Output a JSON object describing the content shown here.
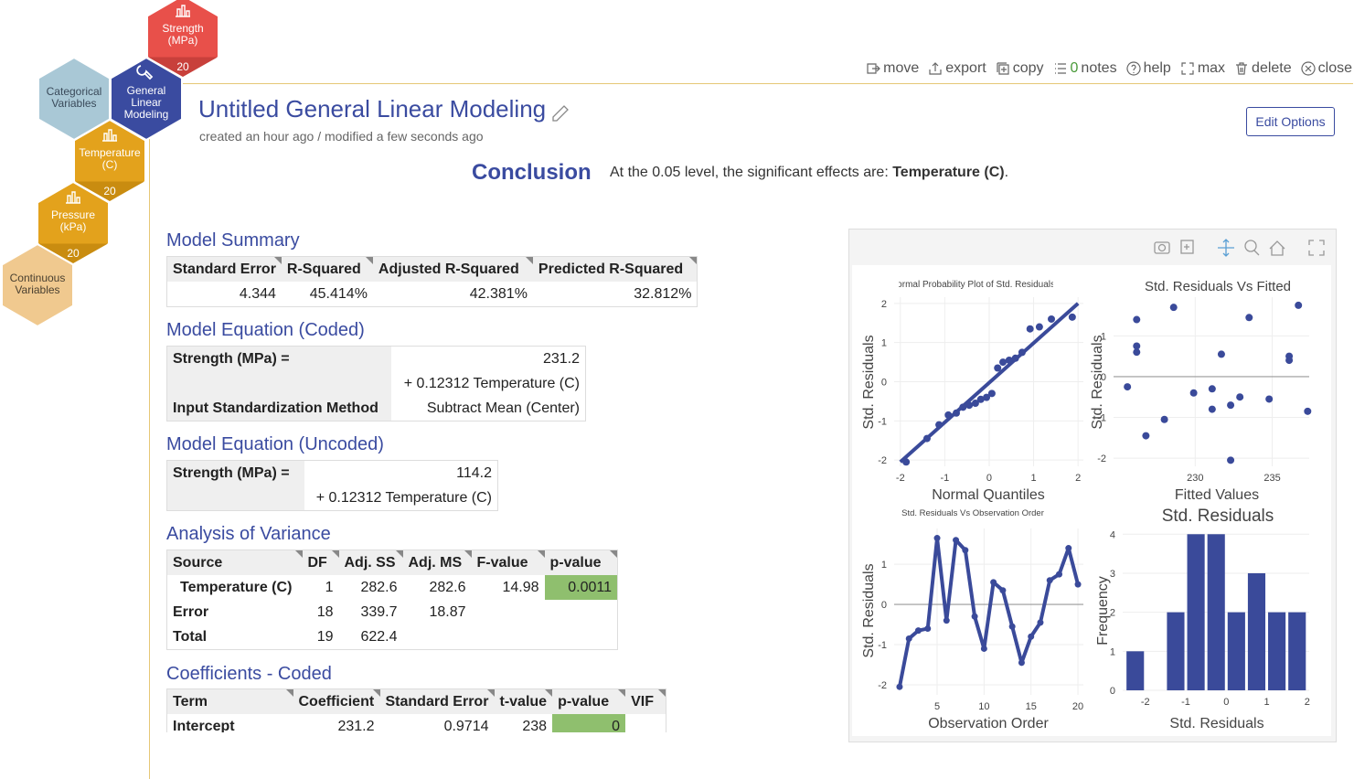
{
  "nodes": [
    {
      "label": "Strength (MPa)",
      "badge": 20,
      "color": "#e8504a",
      "badge_color": "#c8403b",
      "text_color": "#ffffff",
      "icon": "chart"
    },
    {
      "label": "Categorical Variables",
      "color": "#a9c8d6",
      "text_color": "#3a4a5a"
    },
    {
      "label": "General Linear Modeling",
      "color": "#3a4ba0",
      "text_color": "#ffffff",
      "icon": "wrench"
    },
    {
      "label": "Temperature (C)",
      "badge": 20,
      "color": "#e3a21c",
      "badge_color": "#c98c10",
      "text_color": "#ffffff",
      "icon": "chart"
    },
    {
      "label": "Pressure (kPa)",
      "badge": 20,
      "color": "#e3a21c",
      "badge_color": "#c98c10",
      "text_color": "#ffffff",
      "icon": "chart"
    },
    {
      "label": "Continuous Variables",
      "color": "#f0c98f",
      "text_color": "#4a4030"
    }
  ],
  "toolbar": {
    "items": [
      "move",
      "export",
      "copy",
      "notes",
      "help",
      "max",
      "delete",
      "close"
    ],
    "notes_count": 0
  },
  "header": {
    "title": "Untitled General Linear Modeling",
    "subtitle": "created an hour ago / modified a few seconds ago",
    "edit_button": "Edit Options"
  },
  "conclusion": {
    "heading": "Conclusion",
    "text": "At the 0.05 level, the significant effects are: ",
    "effect": "Temperature (C)",
    "end": "."
  },
  "sections": [
    {
      "title": "Model Summary",
      "columns": [
        "Standard Error",
        "R-Squared",
        "Adjusted R-Squared",
        "Predicted R-Squared"
      ],
      "rows": [
        [
          "4.344",
          "45.414%",
          "42.381%",
          "32.812%"
        ]
      ]
    },
    {
      "title": "Model Equation (Coded)",
      "rows": [
        [
          "Strength (MPa) =",
          "231.2"
        ],
        [
          null,
          "+ 0.12312 Temperature (C)"
        ],
        [
          "Input Standardization Method",
          "Subtract Mean (Center)"
        ]
      ]
    },
    {
      "title": "Model Equation (Uncoded)",
      "rows": [
        [
          "Strength (MPa) =",
          "114.2"
        ],
        [
          null,
          "+ 0.12312 Temperature (C)"
        ]
      ]
    },
    {
      "title": "Analysis of Variance",
      "columns": [
        "Source",
        "DF",
        "Adj. SS",
        "Adj. MS",
        "F-value",
        "p-value"
      ],
      "rows": [
        [
          "Temperature (C)",
          "1",
          "282.6",
          "282.6",
          "14.98",
          "0.0011"
        ],
        [
          "Error",
          "18",
          "339.7",
          "18.87",
          null,
          null
        ],
        [
          "Total",
          "19",
          "622.4",
          null,
          null,
          null
        ]
      ],
      "highlight_cells": [
        [
          0,
          5
        ]
      ]
    },
    {
      "title": "Coefficients - Coded",
      "columns": [
        "Term",
        "Coefficient",
        "Standard Error",
        "t-value",
        "p-value",
        "VIF"
      ],
      "rows": [
        [
          "Intercept",
          "231.2",
          "0.9714",
          "238",
          "0",
          null
        ]
      ],
      "highlight_cells": [
        [
          0,
          4
        ]
      ]
    }
  ],
  "charts": [
    {
      "type": "scatter",
      "title": "Normal Probability Plot of Std. Residuals",
      "x_label": "Normal Quantiles",
      "y_label": "Std. Residuals",
      "xlim": [
        -2.14,
        2.12
      ],
      "ylim": [
        -2.16,
        2.16
      ],
      "xticks": [
        -2,
        -1,
        0,
        1,
        2
      ],
      "yticks": [
        -2,
        -1,
        0,
        1,
        2
      ],
      "color": "#3a4a9a",
      "x": [
        -1.87,
        -1.4,
        -1.13,
        -0.92,
        -0.74,
        -0.59,
        -0.45,
        -0.31,
        -0.19,
        -0.06,
        0.06,
        0.19,
        0.31,
        0.45,
        0.59,
        0.74,
        0.92,
        1.13,
        1.4,
        1.87
      ],
      "y": [
        -2.05,
        -1.45,
        -1.1,
        -0.85,
        -0.8,
        -0.65,
        -0.6,
        -0.55,
        -0.45,
        -0.4,
        -0.3,
        0.35,
        0.5,
        0.55,
        0.6,
        0.75,
        1.35,
        1.4,
        1.6,
        1.65
      ],
      "fit_line": {
        "x": [
          -2,
          2
        ],
        "y": [
          -2.05,
          2
        ]
      }
    },
    {
      "type": "scatter",
      "title": "Std. Residuals Vs Fitted",
      "x_label": "Fitted Values",
      "y_label": "Std. Residuals",
      "xlim": [
        224.7,
        237.4
      ],
      "ylim": [
        -2.2,
        1.95
      ],
      "xticks": [
        230,
        235
      ],
      "yticks": [
        -2,
        -1,
        0,
        1
      ],
      "zero_line": true,
      "color": "#3a4a9a",
      "x": [
        225.6,
        226.2,
        226.2,
        226.2,
        226.8,
        228.0,
        228.6,
        229.9,
        231.1,
        231.1,
        231.7,
        232.3,
        232.3,
        232.9,
        233.5,
        234.8,
        236.1,
        236.1,
        236.7,
        237.3
      ],
      "y": [
        -0.25,
        1.4,
        0.75,
        0.6,
        -1.45,
        -1.05,
        1.7,
        -0.4,
        -0.3,
        -0.8,
        0.55,
        -0.7,
        -2.05,
        -0.5,
        1.45,
        -0.55,
        0.5,
        0.4,
        1.75,
        -0.85
      ]
    },
    {
      "type": "line",
      "title": "Std. Residuals Vs Observation Order",
      "x_label": "Observation Order",
      "y_label": "Std. Residuals",
      "xlim": [
        0.42,
        20.58
      ],
      "ylim": [
        -2.25,
        1.89
      ],
      "xticks": [
        5,
        10,
        15,
        20
      ],
      "yticks": [
        -2,
        -1,
        0,
        1
      ],
      "zero_line": true,
      "color": "#3a4a9a",
      "x": [
        1,
        2,
        3,
        4,
        5,
        6,
        7,
        8,
        9,
        10,
        11,
        12,
        13,
        14,
        15,
        16,
        17,
        18,
        19,
        20
      ],
      "y": [
        -2.05,
        -0.85,
        -0.65,
        -0.6,
        1.65,
        -0.4,
        1.6,
        1.35,
        -0.3,
        -1.1,
        0.55,
        0.35,
        -0.55,
        -1.45,
        -0.8,
        -0.45,
        0.6,
        0.75,
        1.4,
        0.5
      ]
    },
    {
      "type": "histogram",
      "title": "Std. Residuals",
      "x_label": "Std. Residuals",
      "y_label": "Frequency",
      "xlim": [
        -2.56,
        2.05
      ],
      "ylim": [
        0,
        4.1
      ],
      "xticks": [
        -2,
        -1,
        0,
        1,
        2
      ],
      "yticks": [
        0,
        1,
        2,
        3,
        4
      ],
      "color": "#3a4a9a",
      "bins": [
        -2.5,
        -2,
        -1.5,
        -1,
        -0.5,
        0,
        0.5,
        1,
        1.5,
        2
      ],
      "counts": [
        1,
        0,
        2,
        4,
        4,
        2,
        3,
        2,
        2
      ]
    }
  ]
}
